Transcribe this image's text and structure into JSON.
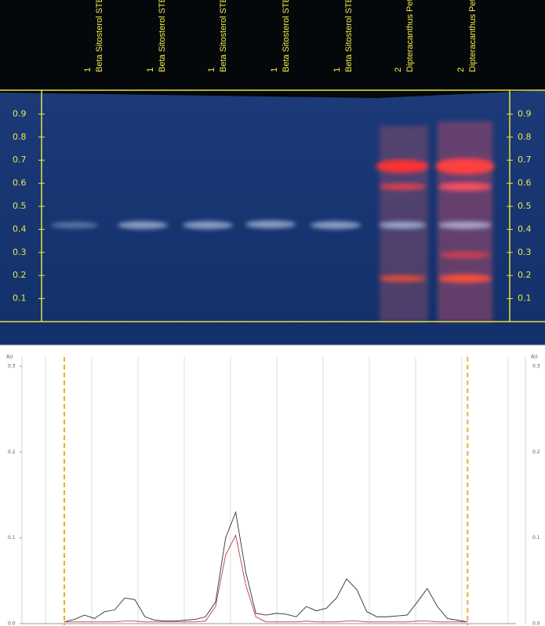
{
  "plate": {
    "lanes": [
      {
        "number": "1",
        "label": "Beta Sitosterol STE"
      },
      {
        "number": "1",
        "label": "Beta Sitosterol STE"
      },
      {
        "number": "1",
        "label": "Beta Sitosterol STE"
      },
      {
        "number": "1",
        "label": "Beta Sitosterol STE"
      },
      {
        "number": "1",
        "label": "Beta Sitosterol STE"
      },
      {
        "number": "2",
        "label": "Dipteracanthus Pet"
      },
      {
        "number": "2",
        "label": "Dipteracanthus Pet"
      }
    ],
    "rf_ticks": [
      0.9,
      0.8,
      0.7,
      0.6,
      0.5,
      0.4,
      0.3,
      0.2,
      0.1
    ]
  },
  "chart_data": {
    "type": "line",
    "y_label": "AU",
    "x": [
      0,
      0.025,
      0.05,
      0.075,
      0.1,
      0.125,
      0.15,
      0.175,
      0.2,
      0.225,
      0.25,
      0.275,
      0.3,
      0.325,
      0.35,
      0.375,
      0.4,
      0.425,
      0.45,
      0.475,
      0.5,
      0.525,
      0.55,
      0.575,
      0.6,
      0.625,
      0.65,
      0.675,
      0.7,
      0.725,
      0.75,
      0.775,
      0.8,
      0.825,
      0.85,
      0.875,
      0.9,
      0.925,
      0.95,
      0.975,
      1.0
    ],
    "series": [
      {
        "color": "#333333",
        "values": [
          0.002,
          0.005,
          0.01,
          0.006,
          0.014,
          0.016,
          0.03,
          0.028,
          0.008,
          0.004,
          0.003,
          0.003,
          0.004,
          0.005,
          0.008,
          0.025,
          0.1,
          0.13,
          0.06,
          0.012,
          0.01,
          0.012,
          0.011,
          0.008,
          0.02,
          0.015,
          0.018,
          0.03,
          0.052,
          0.04,
          0.014,
          0.008,
          0.008,
          0.009,
          0.01,
          0.025,
          0.041,
          0.02,
          0.006,
          0.004,
          0.002
        ]
      },
      {
        "color": "#c0394b",
        "values": [
          0.002,
          0.002,
          0.002,
          0.002,
          0.002,
          0.002,
          0.003,
          0.003,
          0.002,
          0.002,
          0.002,
          0.002,
          0.002,
          0.002,
          0.003,
          0.02,
          0.08,
          0.103,
          0.045,
          0.008,
          0.002,
          0.002,
          0.002,
          0.002,
          0.003,
          0.002,
          0.002,
          0.002,
          0.003,
          0.003,
          0.002,
          0.002,
          0.002,
          0.002,
          0.002,
          0.003,
          0.003,
          0.002,
          0.002,
          0.002,
          0.002
        ]
      }
    ],
    "front_lines": [
      0,
      1
    ],
    "xlim": [
      -0.105,
      1.12
    ],
    "ylim": [
      0,
      0.3
    ],
    "yticks": [
      {
        "value": 0,
        "label": "0.0"
      },
      0.1,
      0.2,
      0.3
    ],
    "grid": true
  }
}
